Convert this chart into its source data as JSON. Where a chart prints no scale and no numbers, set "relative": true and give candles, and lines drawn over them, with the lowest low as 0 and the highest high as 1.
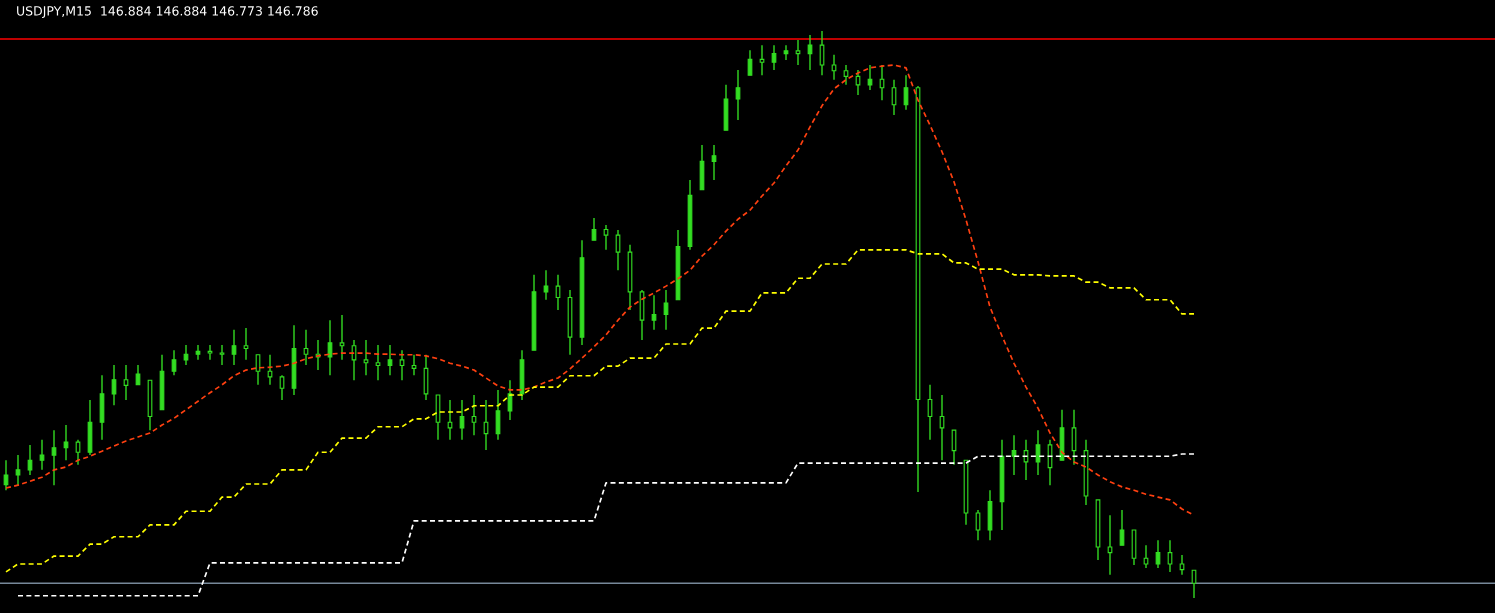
{
  "chart_data": {
    "type": "candlestick",
    "title": "USDJPY,M15  146.884 146.884 146.773 146.786",
    "relative": true,
    "color": "#33dd22",
    "grid": false,
    "categories": [
      null,
      null,
      null,
      null,
      null,
      null,
      null,
      null,
      null,
      null,
      null,
      null,
      null,
      null,
      null,
      null,
      null,
      null,
      null,
      null,
      null,
      null,
      null,
      null,
      null,
      null,
      null,
      null,
      null,
      null,
      null,
      null,
      null,
      null,
      null,
      null,
      null,
      null,
      null,
      null,
      null,
      null,
      null,
      null,
      null,
      null,
      null,
      null,
      null,
      null,
      null,
      null,
      null,
      null,
      null,
      null,
      null,
      null,
      null,
      null,
      null,
      null,
      null,
      null,
      null,
      null,
      null,
      null,
      null,
      null,
      null,
      null,
      null,
      null,
      null,
      null,
      null,
      null,
      null,
      null,
      null,
      null,
      null,
      null,
      null,
      null,
      null,
      null,
      null,
      null,
      null,
      null,
      null,
      null,
      null,
      null,
      null,
      null,
      null,
      null
    ],
    "ohlc": [
      [
        0.2,
        0.243,
        0.19,
        0.217
      ],
      [
        0.217,
        0.252,
        0.199,
        0.226
      ],
      [
        0.226,
        0.27,
        0.217,
        0.243
      ],
      [
        0.243,
        0.279,
        0.226,
        0.252
      ],
      [
        0.252,
        0.296,
        0.199,
        0.265
      ],
      [
        0.265,
        0.305,
        0.243,
        0.275
      ],
      [
        0.275,
        0.279,
        0.235,
        0.257
      ],
      [
        0.257,
        0.349,
        0.252,
        0.31
      ],
      [
        0.31,
        0.393,
        0.279,
        0.36
      ],
      [
        0.36,
        0.411,
        0.34,
        0.385
      ],
      [
        0.385,
        0.411,
        0.349,
        0.375
      ],
      [
        0.376,
        0.411,
        0.376,
        0.395
      ],
      [
        0.384,
        0.384,
        0.296,
        0.32
      ],
      [
        0.332,
        0.429,
        0.332,
        0.4
      ],
      [
        0.4,
        0.437,
        0.393,
        0.42
      ],
      [
        0.42,
        0.446,
        0.411,
        0.43
      ],
      [
        0.43,
        0.446,
        0.42,
        0.435
      ],
      [
        0.435,
        0.446,
        0.42,
        0.432
      ],
      [
        0.432,
        0.446,
        0.411,
        0.43
      ],
      [
        0.43,
        0.473,
        0.411,
        0.445
      ],
      [
        0.445,
        0.476,
        0.42,
        0.44
      ],
      [
        0.429,
        0.429,
        0.376,
        0.4
      ],
      [
        0.4,
        0.429,
        0.376,
        0.39
      ],
      [
        0.39,
        0.393,
        0.349,
        0.37
      ],
      [
        0.37,
        0.481,
        0.358,
        0.44
      ],
      [
        0.44,
        0.473,
        0.411,
        0.43
      ],
      [
        0.43,
        0.455,
        0.402,
        0.425
      ],
      [
        0.425,
        0.49,
        0.393,
        0.45
      ],
      [
        0.45,
        0.499,
        0.42,
        0.445
      ],
      [
        0.445,
        0.455,
        0.384,
        0.42
      ],
      [
        0.42,
        0.455,
        0.393,
        0.415
      ],
      [
        0.415,
        0.446,
        0.384,
        0.41
      ],
      [
        0.41,
        0.446,
        0.393,
        0.42
      ],
      [
        0.42,
        0.437,
        0.384,
        0.41
      ],
      [
        0.41,
        0.429,
        0.393,
        0.405
      ],
      [
        0.405,
        0.429,
        0.349,
        0.36
      ],
      [
        0.358,
        0.358,
        0.279,
        0.31
      ],
      [
        0.31,
        0.349,
        0.279,
        0.3
      ],
      [
        0.3,
        0.349,
        0.279,
        0.32
      ],
      [
        0.32,
        0.358,
        0.287,
        0.31
      ],
      [
        0.31,
        0.349,
        0.261,
        0.29
      ],
      [
        0.29,
        0.367,
        0.279,
        0.33
      ],
      [
        0.33,
        0.384,
        0.314,
        0.36
      ],
      [
        0.36,
        0.437,
        0.349,
        0.42
      ],
      [
        0.437,
        0.57,
        0.437,
        0.54
      ],
      [
        0.54,
        0.578,
        0.526,
        0.55
      ],
      [
        0.55,
        0.57,
        0.508,
        0.53
      ],
      [
        0.53,
        0.543,
        0.429,
        0.46
      ],
      [
        0.46,
        0.631,
        0.446,
        0.6
      ],
      [
        0.631,
        0.67,
        0.631,
        0.65
      ],
      [
        0.65,
        0.658,
        0.614,
        0.64
      ],
      [
        0.64,
        0.649,
        0.578,
        0.61
      ],
      [
        0.61,
        0.623,
        0.508,
        0.54
      ],
      [
        0.54,
        0.543,
        0.455,
        0.49
      ],
      [
        0.49,
        0.534,
        0.473,
        0.5
      ],
      [
        0.5,
        0.543,
        0.473,
        0.52
      ],
      [
        0.526,
        0.649,
        0.526,
        0.62
      ],
      [
        0.62,
        0.737,
        0.614,
        0.71
      ],
      [
        0.72,
        0.799,
        0.72,
        0.77
      ],
      [
        0.77,
        0.799,
        0.737,
        0.78
      ],
      [
        0.825,
        0.905,
        0.825,
        0.88
      ],
      [
        0.88,
        0.931,
        0.843,
        0.9
      ],
      [
        0.922,
        0.966,
        0.922,
        0.95
      ],
      [
        0.95,
        0.975,
        0.922,
        0.945
      ],
      [
        0.945,
        0.975,
        0.931,
        0.96
      ],
      [
        0.96,
        0.975,
        0.949,
        0.965
      ],
      [
        0.965,
        0.984,
        0.94,
        0.96
      ],
      [
        0.96,
        0.993,
        0.931,
        0.975
      ],
      [
        0.975,
        1.0,
        0.922,
        0.94
      ],
      [
        0.94,
        0.958,
        0.914,
        0.93
      ],
      [
        0.93,
        0.94,
        0.905,
        0.92
      ],
      [
        0.92,
        0.931,
        0.887,
        0.905
      ],
      [
        0.905,
        0.94,
        0.896,
        0.915
      ],
      [
        0.915,
        0.94,
        0.878,
        0.9
      ],
      [
        0.9,
        0.914,
        0.852,
        0.87
      ],
      [
        0.87,
        0.922,
        0.861,
        0.9
      ],
      [
        0.9,
        0.903,
        0.187,
        0.35
      ],
      [
        0.35,
        0.376,
        0.279,
        0.32
      ],
      [
        0.32,
        0.358,
        0.243,
        0.3
      ],
      [
        0.296,
        0.296,
        0.235,
        0.26
      ],
      [
        0.243,
        0.243,
        0.129,
        0.15
      ],
      [
        0.15,
        0.155,
        0.102,
        0.12
      ],
      [
        0.12,
        0.19,
        0.102,
        0.17
      ],
      [
        0.17,
        0.279,
        0.12,
        0.25
      ],
      [
        0.25,
        0.287,
        0.217,
        0.26
      ],
      [
        0.26,
        0.279,
        0.208,
        0.24
      ],
      [
        0.24,
        0.296,
        0.217,
        0.27
      ],
      [
        0.27,
        0.279,
        0.199,
        0.23
      ],
      [
        0.243,
        0.332,
        0.243,
        0.3
      ],
      [
        0.3,
        0.332,
        0.235,
        0.26
      ],
      [
        0.26,
        0.279,
        0.164,
        0.18
      ],
      [
        0.173,
        0.173,
        0.067,
        0.09
      ],
      [
        0.09,
        0.146,
        0.041,
        0.08
      ],
      [
        0.093,
        0.155,
        0.093,
        0.12
      ],
      [
        0.12,
        0.12,
        0.058,
        0.07
      ],
      [
        0.07,
        0.093,
        0.053,
        0.06
      ],
      [
        0.06,
        0.102,
        0.053,
        0.08
      ],
      [
        0.08,
        0.102,
        0.046,
        0.06
      ],
      [
        0.06,
        0.076,
        0.041,
        0.05
      ],
      [
        0.049,
        0.049,
        0.0,
        0.026
      ]
    ],
    "series": [
      {
        "type": "line",
        "color": "#ff4010",
        "line_style": "dashed",
        "values": [
          0.194,
          0.199,
          0.206,
          0.213,
          0.226,
          0.231,
          0.243,
          0.25,
          0.259,
          0.268,
          0.277,
          0.284,
          0.291,
          0.305,
          0.317,
          0.332,
          0.347,
          0.362,
          0.376,
          0.392,
          0.402,
          0.406,
          0.407,
          0.409,
          0.414,
          0.422,
          0.427,
          0.43,
          0.432,
          0.432,
          0.432,
          0.43,
          0.43,
          0.429,
          0.429,
          0.427,
          0.422,
          0.414,
          0.409,
          0.402,
          0.388,
          0.374,
          0.367,
          0.367,
          0.372,
          0.381,
          0.388,
          0.404,
          0.423,
          0.443,
          0.464,
          0.49,
          0.513,
          0.527,
          0.538,
          0.55,
          0.563,
          0.578,
          0.603,
          0.623,
          0.647,
          0.668,
          0.684,
          0.709,
          0.732,
          0.762,
          0.79,
          0.831,
          0.868,
          0.898,
          0.914,
          0.926,
          0.935,
          0.938,
          0.94,
          0.935,
          0.878,
          0.834,
          0.787,
          0.734,
          0.667,
          0.593,
          0.513,
          0.462,
          0.414,
          0.372,
          0.335,
          0.291,
          0.257,
          0.24,
          0.231,
          0.217,
          0.205,
          0.196,
          0.19,
          0.183,
          0.178,
          0.173,
          0.157,
          0.146
        ]
      },
      {
        "type": "line",
        "color": "#ffff00",
        "line_style": "dashed",
        "values": [
          0.046,
          0.06,
          0.06,
          0.06,
          0.074,
          0.074,
          0.074,
          0.095,
          0.095,
          0.108,
          0.108,
          0.108,
          0.129,
          0.129,
          0.129,
          0.153,
          0.153,
          0.153,
          0.178,
          0.178,
          0.201,
          0.201,
          0.201,
          0.226,
          0.226,
          0.226,
          0.257,
          0.257,
          0.282,
          0.282,
          0.282,
          0.302,
          0.302,
          0.302,
          0.316,
          0.316,
          0.328,
          0.328,
          0.328,
          0.339,
          0.339,
          0.339,
          0.358,
          0.358,
          0.372,
          0.372,
          0.372,
          0.392,
          0.392,
          0.392,
          0.409,
          0.409,
          0.423,
          0.423,
          0.423,
          0.448,
          0.448,
          0.448,
          0.476,
          0.476,
          0.506,
          0.506,
          0.506,
          0.538,
          0.538,
          0.538,
          0.564,
          0.564,
          0.589,
          0.589,
          0.589,
          0.614,
          0.614,
          0.614,
          0.614,
          0.614,
          0.607,
          0.607,
          0.607,
          0.591,
          0.591,
          0.58,
          0.58,
          0.58,
          0.57,
          0.57,
          0.57,
          0.568,
          0.568,
          0.568,
          0.557,
          0.557,
          0.547,
          0.547,
          0.547,
          0.526,
          0.526,
          0.526,
          0.501,
          0.501
        ]
      },
      {
        "type": "line",
        "color": "#ffffff",
        "line_style": "dashed",
        "values": [
          null,
          0.004,
          0.004,
          0.004,
          0.004,
          0.004,
          0.004,
          0.004,
          0.004,
          0.004,
          0.004,
          0.004,
          0.004,
          0.004,
          0.004,
          0.004,
          0.004,
          0.062,
          0.062,
          0.062,
          0.062,
          0.062,
          0.062,
          0.062,
          0.062,
          0.062,
          0.062,
          0.062,
          0.062,
          0.062,
          0.062,
          0.062,
          0.062,
          0.062,
          0.136,
          0.136,
          0.136,
          0.136,
          0.136,
          0.136,
          0.136,
          0.136,
          0.136,
          0.136,
          0.136,
          0.136,
          0.136,
          0.136,
          0.136,
          0.136,
          0.203,
          0.203,
          0.203,
          0.203,
          0.203,
          0.203,
          0.203,
          0.203,
          0.203,
          0.203,
          0.203,
          0.203,
          0.203,
          0.203,
          0.203,
          0.203,
          0.238,
          0.238,
          0.238,
          0.238,
          0.238,
          0.238,
          0.238,
          0.238,
          0.238,
          0.238,
          0.238,
          0.238,
          0.238,
          0.238,
          0.238,
          0.25,
          0.25,
          0.25,
          0.25,
          0.25,
          0.25,
          0.25,
          0.25,
          0.25,
          0.25,
          0.25,
          0.25,
          0.25,
          0.25,
          0.25,
          0.25,
          0.25,
          0.254,
          0.254
        ]
      }
    ],
    "ref_lines": [
      {
        "axis": "y",
        "value": 0.986,
        "color": "#ff0000",
        "line_style": "solid"
      },
      {
        "axis": "y",
        "value": 0.026,
        "color": "#778899",
        "line_style": "solid"
      }
    ]
  }
}
